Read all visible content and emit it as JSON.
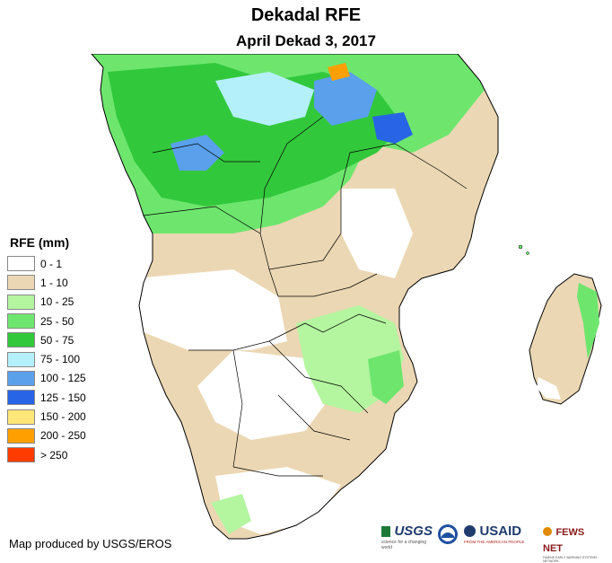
{
  "title": "Dekadal RFE",
  "subtitle": "April Dekad 3, 2017",
  "legend": {
    "title": "RFE (mm)",
    "items": [
      {
        "label": "0 - 1",
        "color": "#ffffff"
      },
      {
        "label": "1 - 10",
        "color": "#ebd7b3"
      },
      {
        "label": "10 - 25",
        "color": "#b4f5a0"
      },
      {
        "label": "25 - 50",
        "color": "#6ee66e"
      },
      {
        "label": "50 - 75",
        "color": "#32c83c"
      },
      {
        "label": "75 - 100",
        "color": "#b4f0fa"
      },
      {
        "label": "100 - 125",
        "color": "#5aa0eb"
      },
      {
        "label": "125 - 150",
        "color": "#2864e6"
      },
      {
        "label": "150 - 200",
        "color": "#ffe678"
      },
      {
        "label": "200 - 250",
        "color": "#ffa000"
      },
      {
        "label": "> 250",
        "color": "#ff3c00"
      }
    ]
  },
  "credit": "Map produced by USGS/EROS",
  "logos": {
    "usgs": {
      "name": "USGS",
      "tagline": "science for a changing world"
    },
    "noaa": {
      "icon": "noaa-icon"
    },
    "usaid": {
      "name": "USAID",
      "tagline": "FROM THE AMERICAN PEOPLE"
    },
    "fews": {
      "name": "FEWS NET",
      "tagline": "FAMINE EARLY WARNING SYSTEMS NETWORK"
    }
  }
}
